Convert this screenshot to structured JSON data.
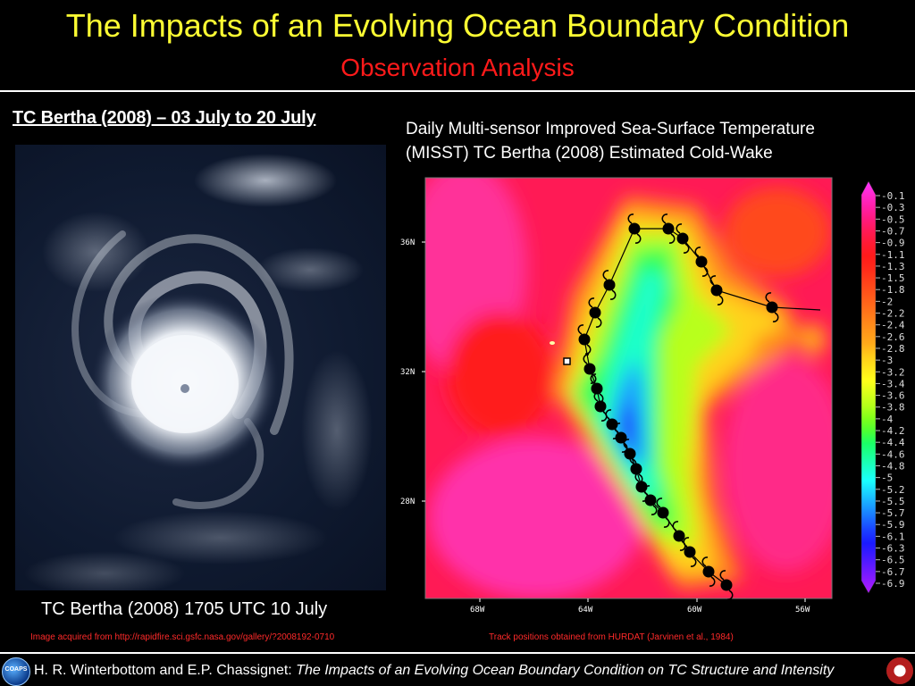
{
  "header": {
    "title": "The Impacts of an Evolving Ocean Boundary Condition",
    "subtitle": "Observation Analysis"
  },
  "left_panel": {
    "heading": "TC Bertha (2008) – 03 July to 20 July",
    "image_caption": "TC Bertha (2008) 1705 UTC 10 July",
    "image_source": "Image acquired from http://rapidfire.sci.gsfc.nasa.gov/gallery/?2008192-0710"
  },
  "right_panel": {
    "heading_line1": "Daily Multi-sensor Improved Sea-Surface Temperature",
    "heading_line2": "(MISST) TC Bertha (2008) Estimated Cold-Wake",
    "track_source": "Track positions obtained from HURDAT (Jarvinen et al., 1984)",
    "lat_labels": [
      "36N",
      "32N",
      "28N"
    ],
    "lon_labels": [
      "68W",
      "64W",
      "60W",
      "56W"
    ],
    "colorbar_labels": [
      "-0.1",
      "-0.3",
      "-0.5",
      "-0.7",
      "-0.9",
      "-1.1",
      "-1.3",
      "-1.5",
      "-1.8",
      "-2",
      "-2.2",
      "-2.4",
      "-2.6",
      "-2.8",
      "-3",
      "-3.2",
      "-3.4",
      "-3.6",
      "-3.8",
      "-4",
      "-4.2",
      "-4.4",
      "-4.6",
      "-4.8",
      "-5",
      "-5.2",
      "-5.5",
      "-5.7",
      "-5.9",
      "-6.1",
      "-6.3",
      "-6.5",
      "-6.7",
      "-6.9"
    ],
    "colorbar_colors": [
      "#ff33ff",
      "#ff2ad0",
      "#ff1faa",
      "#ff1a80",
      "#ff1a55",
      "#ff1a33",
      "#ff1a1a",
      "#ff2a1a",
      "#ff401a",
      "#ff551a",
      "#ff6a1a",
      "#ff801a",
      "#ff951a",
      "#ffaa1a",
      "#ffcc1a",
      "#ffe61a",
      "#ffff1a",
      "#d9ff1a",
      "#b3ff1a",
      "#80ff1a",
      "#4dff33",
      "#1aff66",
      "#1aff99",
      "#1affcc",
      "#1affff",
      "#1acfff",
      "#1a9fff",
      "#1a6fff",
      "#1a3fff",
      "#1a1aff",
      "#3f1aff",
      "#661aff",
      "#8c1aff",
      "#b31aff"
    ]
  },
  "footer": {
    "authors": "H. R. Winterbottom and E.P. Chassignet: ",
    "talk_title": "The Impacts of an Evolving Ocean Boundary Condition on TC Structure and Intensity",
    "logo_left_text": "COAPS"
  }
}
